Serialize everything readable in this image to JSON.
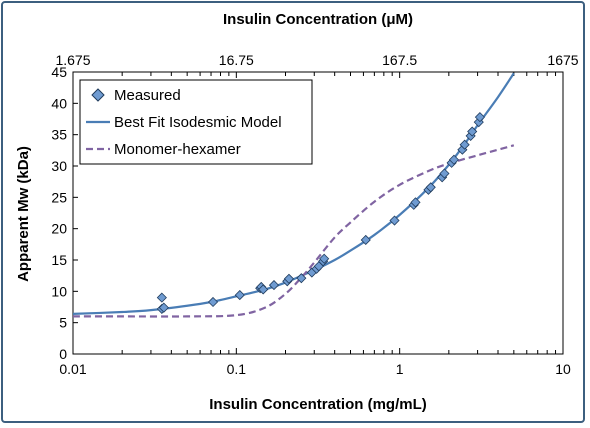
{
  "chart_data": {
    "type": "scatter",
    "title": "",
    "xlabel": "Insulin Concentration (mg/mL)",
    "ylabel": "Apparent Mw (kDa)",
    "x2label": "Insulin Concentration (μM)",
    "x_scale": "log",
    "xlim": [
      0.01,
      10
    ],
    "ylim": [
      0,
      45
    ],
    "x_ticks": [
      0.01,
      0.1,
      1,
      10
    ],
    "x_tick_labels": [
      "0.01",
      "0.1",
      "1",
      "10"
    ],
    "y_ticks": [
      0,
      5,
      10,
      15,
      20,
      25,
      30,
      35,
      40,
      45
    ],
    "y_tick_labels": [
      "0",
      "5",
      "10",
      "15",
      "20",
      "25",
      "30",
      "35",
      "40",
      "45"
    ],
    "x2_tick_labels": [
      "1.675",
      "16.75",
      "167.5",
      "1675"
    ],
    "grid": false,
    "legend_position": "top-left",
    "colors": {
      "measured_fill": "#6f9bd1",
      "measured_stroke": "#1f3b5c",
      "fit_line": "#4a7db5",
      "hexamer_line": "#8064a2",
      "frame": "#3c5f7f"
    },
    "series": [
      {
        "name": "Measured",
        "kind": "scatter",
        "marker": "diamond",
        "x": [
          0.035,
          0.035,
          0.036,
          0.072,
          0.105,
          0.14,
          0.142,
          0.146,
          0.17,
          0.205,
          0.21,
          0.25,
          0.29,
          0.31,
          0.32,
          0.34,
          0.345,
          0.62,
          0.93,
          1.22,
          1.25,
          1.5,
          1.55,
          1.82,
          1.88,
          2.08,
          2.15,
          2.42,
          2.5,
          2.72,
          2.78,
          3.05,
          3.1
        ],
        "y": [
          9.0,
          7.2,
          7.4,
          8.3,
          9.4,
          10.5,
          10.7,
          10.3,
          11.0,
          11.6,
          12.0,
          12.1,
          13.0,
          13.6,
          14.0,
          14.8,
          15.2,
          18.2,
          21.3,
          23.8,
          24.2,
          26.2,
          26.6,
          28.2,
          28.8,
          30.5,
          31.0,
          32.6,
          33.4,
          34.8,
          35.5,
          37.0,
          37.8
        ]
      },
      {
        "name": "Best Fit Isodesmic Model",
        "kind": "line",
        "style": "solid",
        "x": [
          0.01,
          0.02,
          0.03,
          0.05,
          0.07,
          0.1,
          0.15,
          0.2,
          0.3,
          0.4,
          0.5,
          0.7,
          1.0,
          1.5,
          2.0,
          2.5,
          3.0,
          4.0,
          5.0
        ],
        "y": [
          6.4,
          6.7,
          7.0,
          7.7,
          8.3,
          9.2,
          10.3,
          11.4,
          13.4,
          15.0,
          16.5,
          19.0,
          22.2,
          26.5,
          30.2,
          33.5,
          36.5,
          41.0,
          44.8
        ]
      },
      {
        "name": "Monomer-hexamer",
        "kind": "line",
        "style": "dashed",
        "x": [
          0.01,
          0.02,
          0.05,
          0.1,
          0.15,
          0.2,
          0.25,
          0.3,
          0.4,
          0.5,
          0.7,
          1.0,
          1.5,
          2.0,
          3.0,
          4.0,
          5.0
        ],
        "y": [
          6.0,
          6.0,
          6.0,
          6.2,
          7.4,
          9.6,
          12.2,
          14.6,
          18.6,
          21.0,
          24.3,
          27.0,
          29.2,
          30.4,
          31.7,
          32.6,
          33.3
        ]
      }
    ]
  }
}
